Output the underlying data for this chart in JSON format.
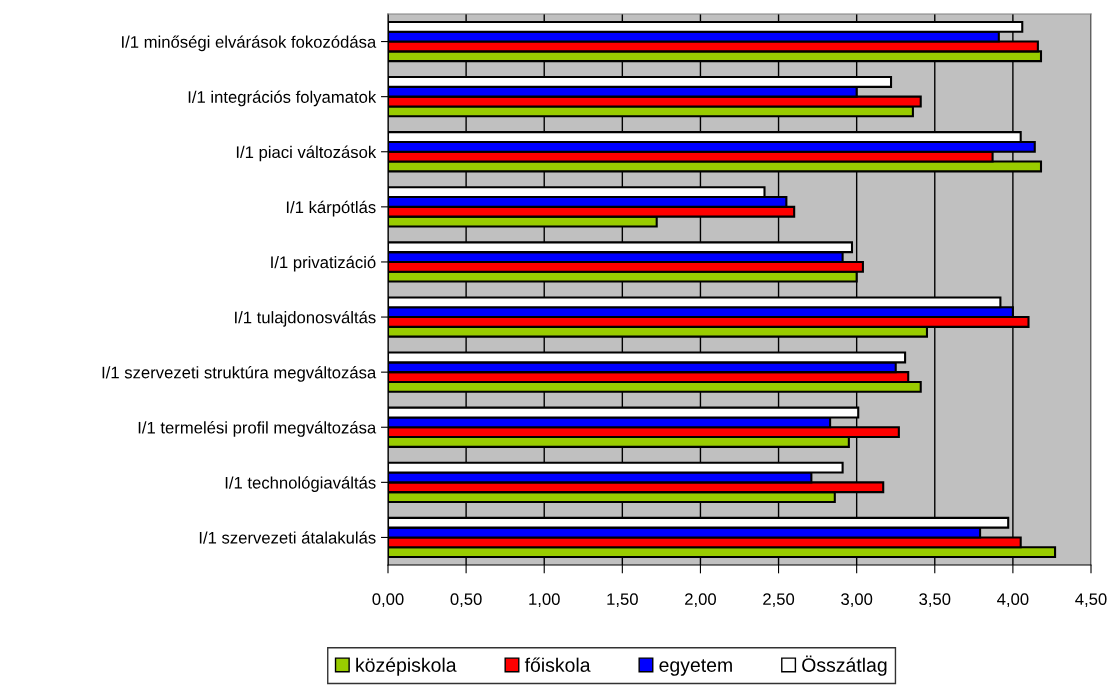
{
  "chart_data": {
    "type": "bar",
    "orientation": "horizontal",
    "categories": [
      "I/1 minőségi elvárások fokozódása",
      "I/1 integrációs folyamatok",
      "I/1 piaci változások",
      "I/1 kárpótlás",
      "I/1 privatizáció",
      "I/1 tulajdonosváltás",
      "I/1 szervezeti struktúra megváltozása",
      "I/1 termelési profil megváltozása",
      "I/1 technológiaváltás",
      "I/1 szervezeti átalakulás"
    ],
    "series": [
      {
        "name": "középiskola",
        "color": "#99cc00",
        "values": [
          4.18,
          3.36,
          4.18,
          1.72,
          3.0,
          3.45,
          3.41,
          2.95,
          2.86,
          4.27
        ]
      },
      {
        "name": "főiskola",
        "color": "#ff0000",
        "values": [
          4.16,
          3.41,
          3.87,
          2.6,
          3.04,
          4.1,
          3.33,
          3.27,
          3.17,
          4.05
        ]
      },
      {
        "name": "egyetem",
        "color": "#0000ff",
        "values": [
          3.91,
          3.0,
          4.14,
          2.55,
          2.91,
          4.0,
          3.25,
          2.83,
          2.71,
          3.79
        ]
      },
      {
        "name": "Összátlag",
        "color": "#ffffff",
        "values": [
          4.06,
          3.22,
          4.05,
          2.41,
          2.97,
          3.92,
          3.31,
          3.01,
          2.91,
          3.97
        ]
      }
    ],
    "xlim": [
      0,
      4.5
    ],
    "xticks": [
      {
        "value": 0,
        "label": "0,00"
      },
      {
        "value": 0.5,
        "label": "0,50"
      },
      {
        "value": 1,
        "label": "1,00"
      },
      {
        "value": 1.5,
        "label": "1,50"
      },
      {
        "value": 2,
        "label": "2,00"
      },
      {
        "value": 2.5,
        "label": "2,50"
      },
      {
        "value": 3,
        "label": "3,00"
      },
      {
        "value": 3.5,
        "label": "3,50"
      },
      {
        "value": 4,
        "label": "4,00"
      },
      {
        "value": 4.5,
        "label": "4,50"
      }
    ],
    "grid": "x",
    "legend": "bottom"
  }
}
